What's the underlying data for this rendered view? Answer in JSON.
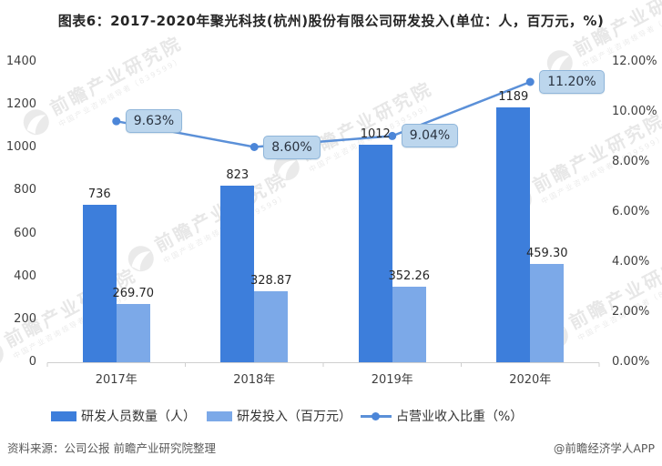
{
  "title": "图表6：2017-2020年聚光科技(杭州)股份有限公司研发投入(单位：人，百万元，%)",
  "chart_data": {
    "type": "bar+line combo",
    "categories": [
      "2017年",
      "2018年",
      "2019年",
      "2020年"
    ],
    "series": [
      {
        "name": "研发人员数量（人）",
        "type": "bar",
        "axis": "left",
        "values": [
          736,
          823,
          1012,
          1189
        ],
        "labels": [
          "736",
          "823",
          "1012",
          "1189"
        ],
        "color": "#3D7EDB"
      },
      {
        "name": "研发投入（百万元）",
        "type": "bar",
        "axis": "left",
        "values": [
          269.7,
          328.87,
          352.26,
          459.3
        ],
        "labels": [
          "269.70",
          "328.87",
          "352.26",
          "459.30"
        ],
        "color": "#7CA9E8"
      },
      {
        "name": "占营业收入比重（%）",
        "type": "line",
        "axis": "right",
        "values": [
          9.63,
          8.6,
          9.04,
          11.2
        ],
        "labels": [
          "9.63%",
          "8.60%",
          "9.04%",
          "11.20%"
        ],
        "color": "#5B90D8",
        "marker_color": "#4C86D8"
      }
    ],
    "left_axis": {
      "min": 0,
      "max": 1400,
      "ticks": [
        "1400",
        "1200",
        "1000",
        "800",
        "600",
        "400",
        "200",
        "0"
      ]
    },
    "right_axis": {
      "min": 0,
      "max": 12,
      "ticks": [
        "12.00%",
        "10.00%",
        "8.00%",
        "6.00%",
        "4.00%",
        "2.00%",
        "0.00%"
      ]
    },
    "grid": false,
    "legend_position": "bottom"
  },
  "point_label_style": {
    "fill": "#BCD6ED",
    "border": "#90B6DA"
  },
  "axis_line_color": "#CFCFCF",
  "footer": {
    "source": "资料来源：公司公报 前瞻产业研究院整理",
    "credit": "@前瞻经济学人APP"
  },
  "watermark": {
    "main": "前瞻产业研究院",
    "sub": "中国产业咨询领导者（839599）"
  }
}
